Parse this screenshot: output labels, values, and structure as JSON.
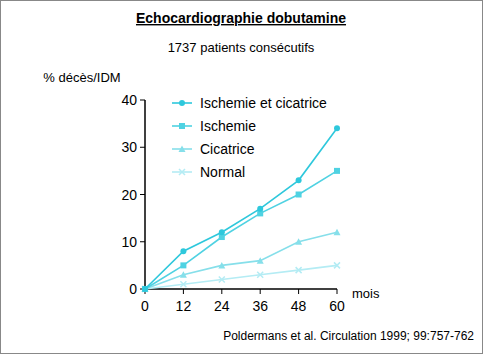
{
  "chart_data": {
    "type": "line",
    "title": "Echocardiographie dobutamine",
    "subtitle": "1737 patients consécutifs",
    "y_label": "% décès/IDM",
    "x_label": "mois",
    "annotations": [
      "Poldermans et al. Circulation 1999; 99:757-762"
    ],
    "x": [
      0,
      12,
      24,
      36,
      48,
      60
    ],
    "series": [
      {
        "name": "Ischemie et cicatrice",
        "color": "#2ec8dc",
        "marker": "circle",
        "values": [
          0,
          8,
          12,
          17,
          23,
          34
        ]
      },
      {
        "name": "Ischemie",
        "color": "#4fd2e2",
        "marker": "square",
        "values": [
          0,
          5,
          11,
          16,
          20,
          25
        ]
      },
      {
        "name": "Cicatrice",
        "color": "#86dfea",
        "marker": "triangle",
        "values": [
          0,
          3,
          5,
          6,
          10,
          12
        ]
      },
      {
        "name": "Normal",
        "color": "#b4ecf4",
        "marker": "cross",
        "values": [
          0,
          1,
          2,
          3,
          4,
          5
        ]
      }
    ],
    "xlim": [
      0,
      60
    ],
    "ylim": [
      0,
      40
    ],
    "xticks": [
      0,
      12,
      24,
      36,
      48,
      60
    ],
    "yticks": [
      0,
      10,
      20,
      30,
      40
    ],
    "legend": "upper left",
    "grid": false
  }
}
